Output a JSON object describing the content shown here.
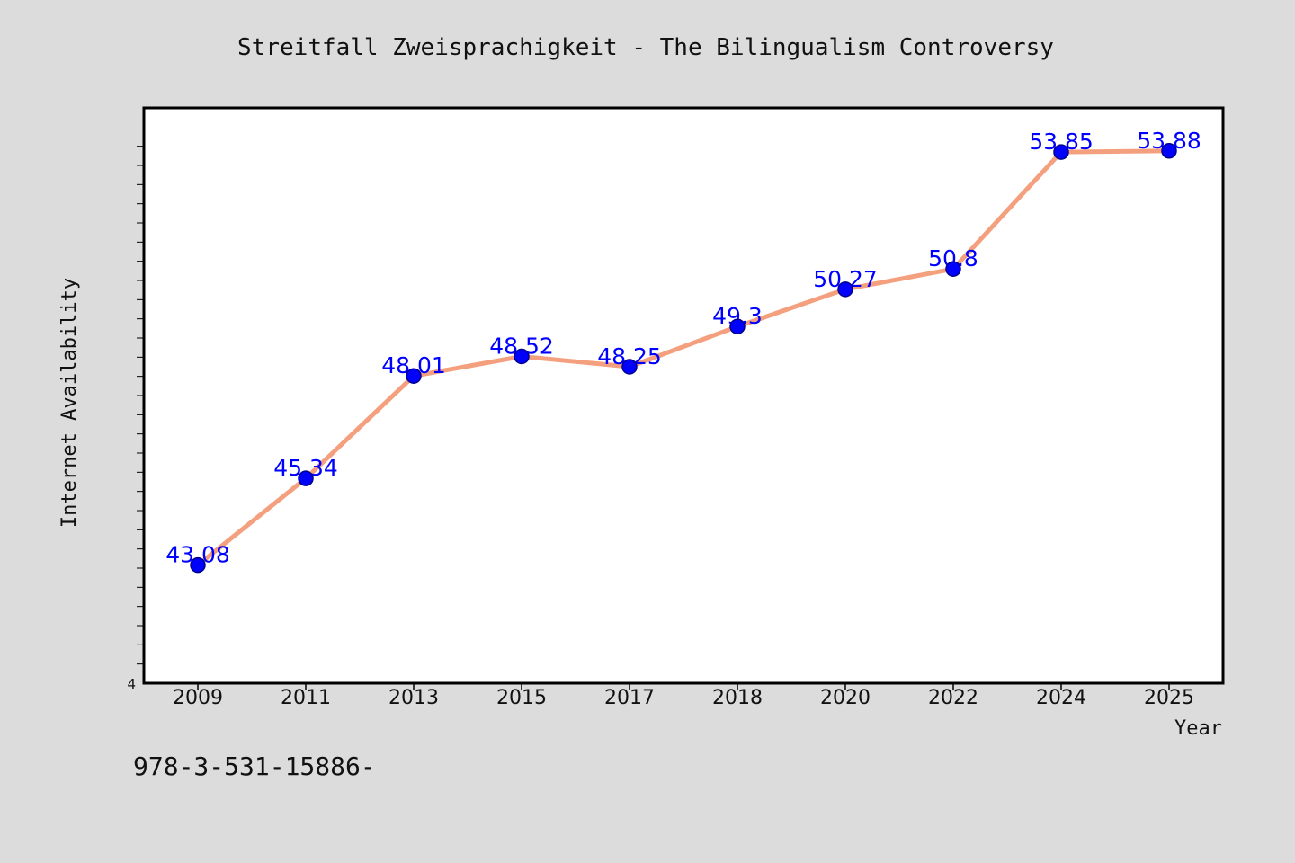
{
  "chart_data": {
    "type": "line",
    "title": "Streitfall Zweisprachigkeit - The Bilingualism Controversy",
    "xlabel": "Year",
    "ylabel": "Internet Availability",
    "categories": [
      "2009",
      "2011",
      "2013",
      "2015",
      "2017",
      "2018",
      "2020",
      "2022",
      "2024",
      "2025"
    ],
    "series": [
      {
        "values": [
          43.08,
          45.34,
          48.01,
          48.52,
          48.25,
          49.3,
          50.27,
          50.8,
          53.85,
          53.88
        ],
        "labels": [
          "43.08",
          "45.34",
          "48.01",
          "48.52",
          "48.25",
          "49.3",
          "50.27",
          "50.8",
          "53.85",
          "53.88"
        ]
      }
    ],
    "y_axis_visible_label": "4",
    "ylim": [
      40,
      55
    ],
    "grid": false,
    "legend": "none",
    "colors": {
      "line": "#f4a07e",
      "marker": "#0000ff",
      "data_label": "#0000ff",
      "plot_background": "#ffffff",
      "figure_background": "#dcdcdc"
    }
  },
  "footer_text": "978-3-531-15886-"
}
